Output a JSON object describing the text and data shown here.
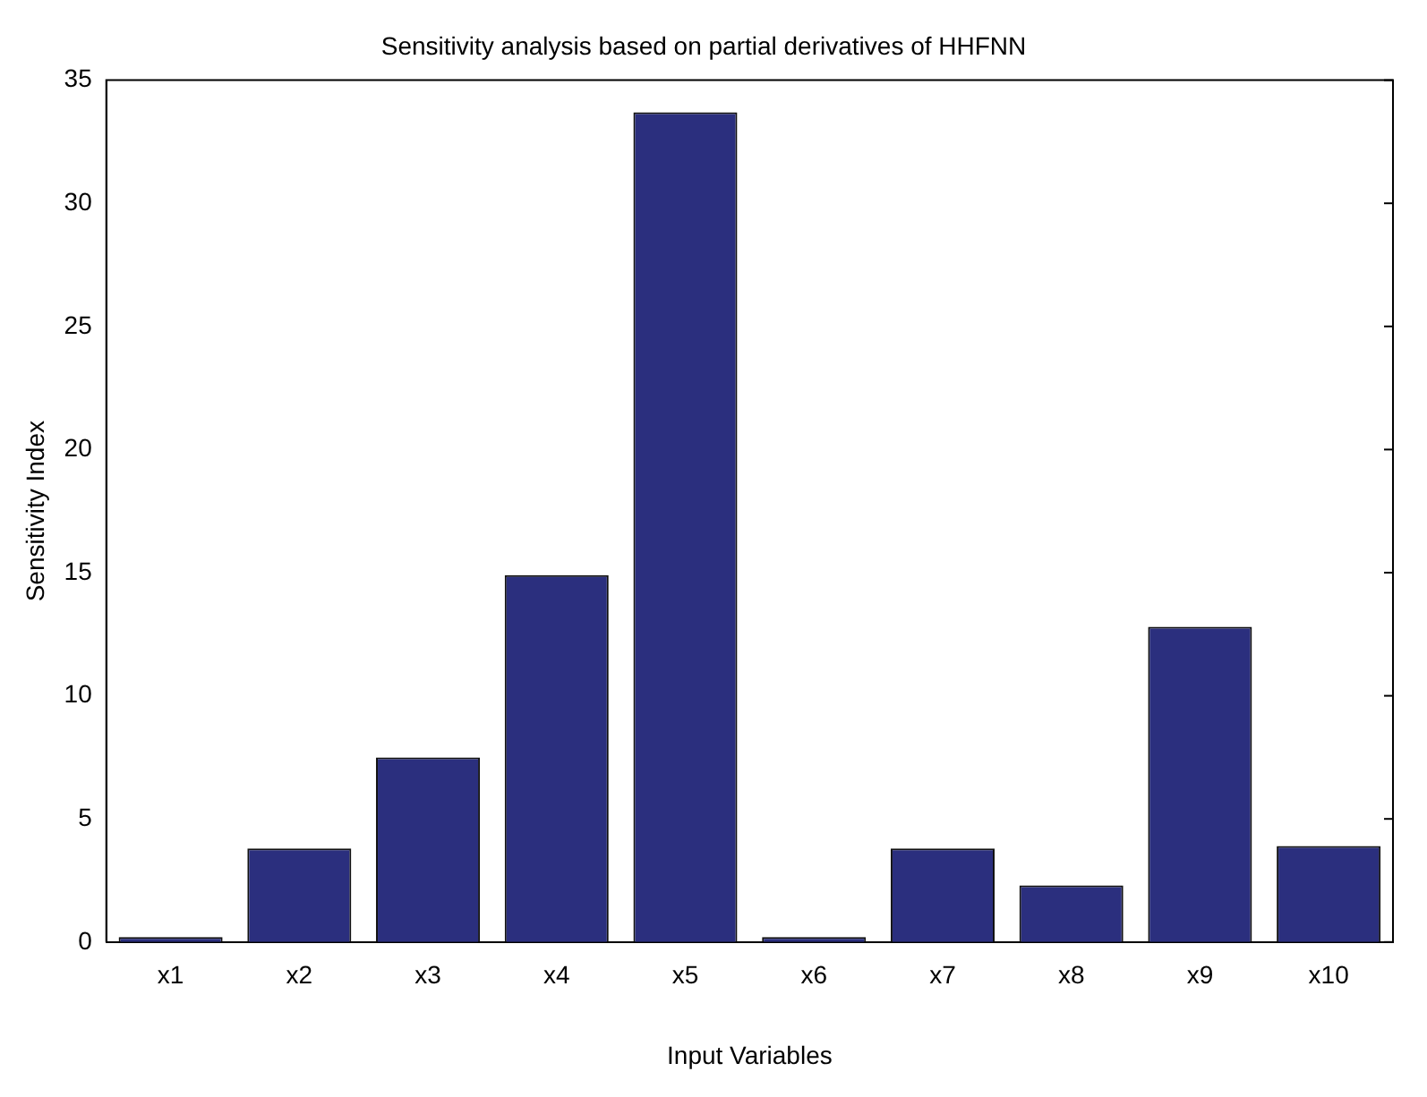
{
  "chart_data": {
    "type": "bar",
    "title": "Sensitivity analysis based on partial derivatives of HHFNN",
    "xlabel": "Input Variables",
    "ylabel": "Sensitivity Index",
    "categories": [
      "x1",
      "x2",
      "x3",
      "x4",
      "x5",
      "x6",
      "x7",
      "x8",
      "x9",
      "x10"
    ],
    "values": [
      0.2,
      3.8,
      7.5,
      14.9,
      33.7,
      0.2,
      3.8,
      2.3,
      12.8,
      3.9
    ],
    "color": "#2b2f7e",
    "ylim": [
      0,
      35
    ],
    "yticks": [
      0,
      5,
      10,
      15,
      20,
      25,
      30,
      35
    ],
    "grid": false,
    "legend": false
  }
}
